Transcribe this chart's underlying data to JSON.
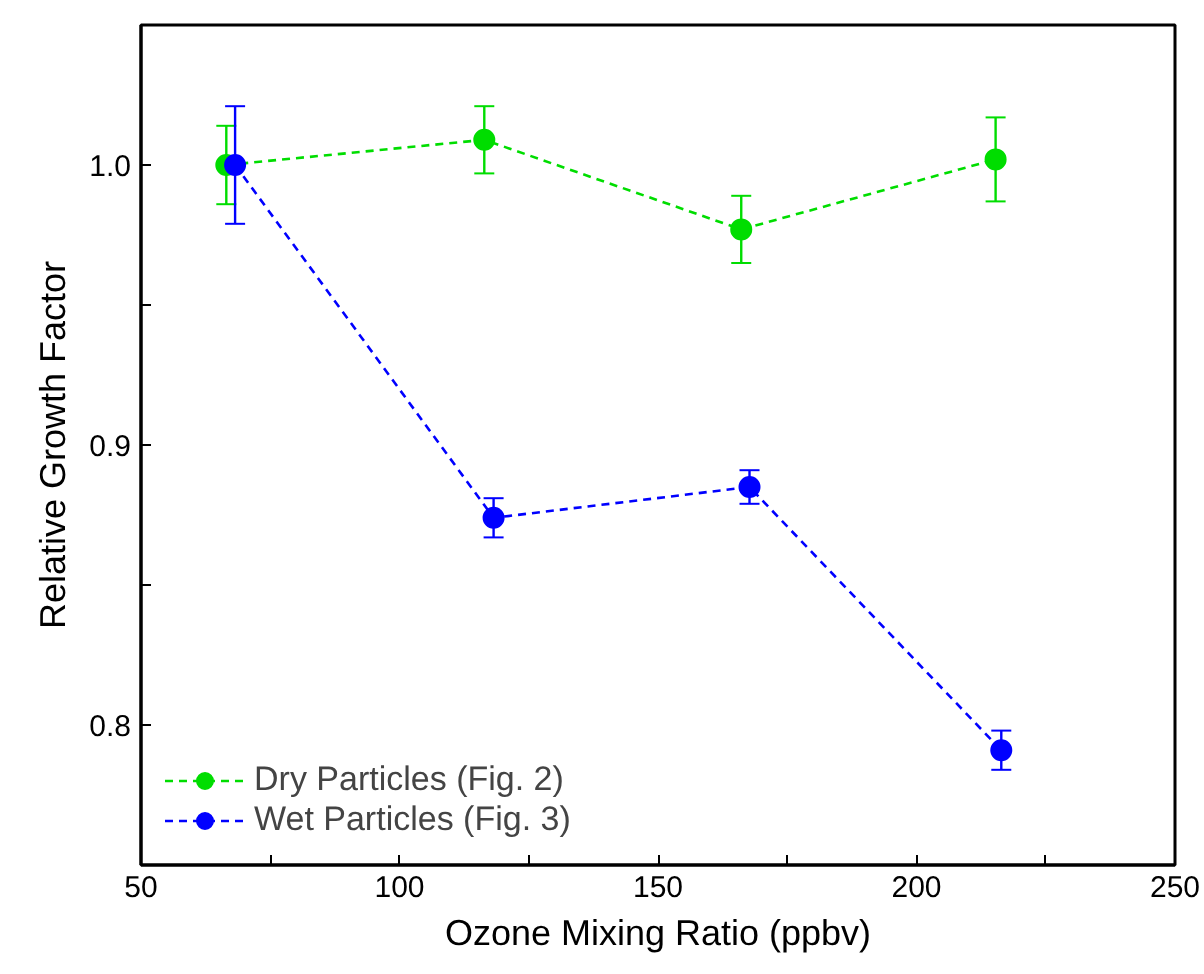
{
  "chart_data": {
    "type": "line",
    "xlabel": "Ozone Mixing Ratio (ppbv)",
    "ylabel": "Relative Growth Factor",
    "xlim": [
      50,
      250
    ],
    "ylim": [
      0.75,
      1.05
    ],
    "xticks": [
      50,
      {
        "value": 75,
        "label": null
      },
      100,
      {
        "value": 125,
        "label": null
      },
      150,
      {
        "value": 175,
        "label": null
      },
      200,
      {
        "value": 225,
        "label": null
      },
      250
    ],
    "yticks": [
      {
        "value": 0.75,
        "label": null
      },
      0.8,
      {
        "value": 0.85,
        "label": null
      },
      0.9,
      {
        "value": 0.95,
        "label": null
      },
      {
        "value": 1.0,
        "label": "1.0"
      }
    ],
    "marker": "circle",
    "line_style": "dashed",
    "grid": false,
    "legend": "bottom left",
    "series": [
      {
        "name": "Dry Particles (Fig. 2)",
        "color": "#00dd00",
        "x": [
          66.5,
          116.4,
          166.1,
          215.3
        ],
        "values": [
          1.0,
          1.009,
          0.977,
          1.002
        ],
        "errors": [
          0.014,
          0.012,
          0.012,
          0.015
        ]
      },
      {
        "name": "Wet Particles (Fig. 3)",
        "color": "#0000ff",
        "x": [
          68.2,
          118.2,
          167.7,
          216.4
        ],
        "values": [
          1.0,
          0.874,
          0.885,
          0.791
        ],
        "errors": [
          0.021,
          0.007,
          0.006,
          0.007
        ]
      }
    ]
  }
}
